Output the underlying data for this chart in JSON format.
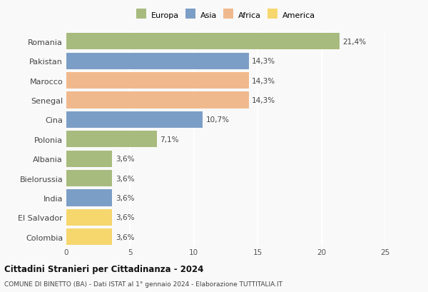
{
  "categories": [
    "Colombia",
    "El Salvador",
    "India",
    "Bielorussia",
    "Albania",
    "Polonia",
    "Cina",
    "Senegal",
    "Marocco",
    "Pakistan",
    "Romania"
  ],
  "values": [
    3.6,
    3.6,
    3.6,
    3.6,
    3.6,
    7.1,
    10.7,
    14.3,
    14.3,
    14.3,
    21.4
  ],
  "labels": [
    "3,6%",
    "3,6%",
    "3,6%",
    "3,6%",
    "3,6%",
    "7,1%",
    "10,7%",
    "14,3%",
    "14,3%",
    "14,3%",
    "21,4%"
  ],
  "colors": [
    "#f5d76e",
    "#f5d76e",
    "#7b9ec7",
    "#a8bb7e",
    "#a8bb7e",
    "#a8bb7e",
    "#7b9ec7",
    "#f0b98d",
    "#f0b98d",
    "#7b9ec7",
    "#a8bb7e"
  ],
  "legend": [
    {
      "label": "Europa",
      "color": "#a8bb7e"
    },
    {
      "label": "Asia",
      "color": "#7b9ec7"
    },
    {
      "label": "Africa",
      "color": "#f0b98d"
    },
    {
      "label": "America",
      "color": "#f5d76e"
    }
  ],
  "xlim": [
    0,
    25
  ],
  "xticks": [
    0,
    5,
    10,
    15,
    20,
    25
  ],
  "title": "Cittadini Stranieri per Cittadinanza - 2024",
  "subtitle": "COMUNE DI BINETTO (BA) - Dati ISTAT al 1° gennaio 2024 - Elaborazione TUTTITALIA.IT",
  "bg_color": "#f9f9f9",
  "grid_color": "#ffffff",
  "bar_height": 0.85
}
